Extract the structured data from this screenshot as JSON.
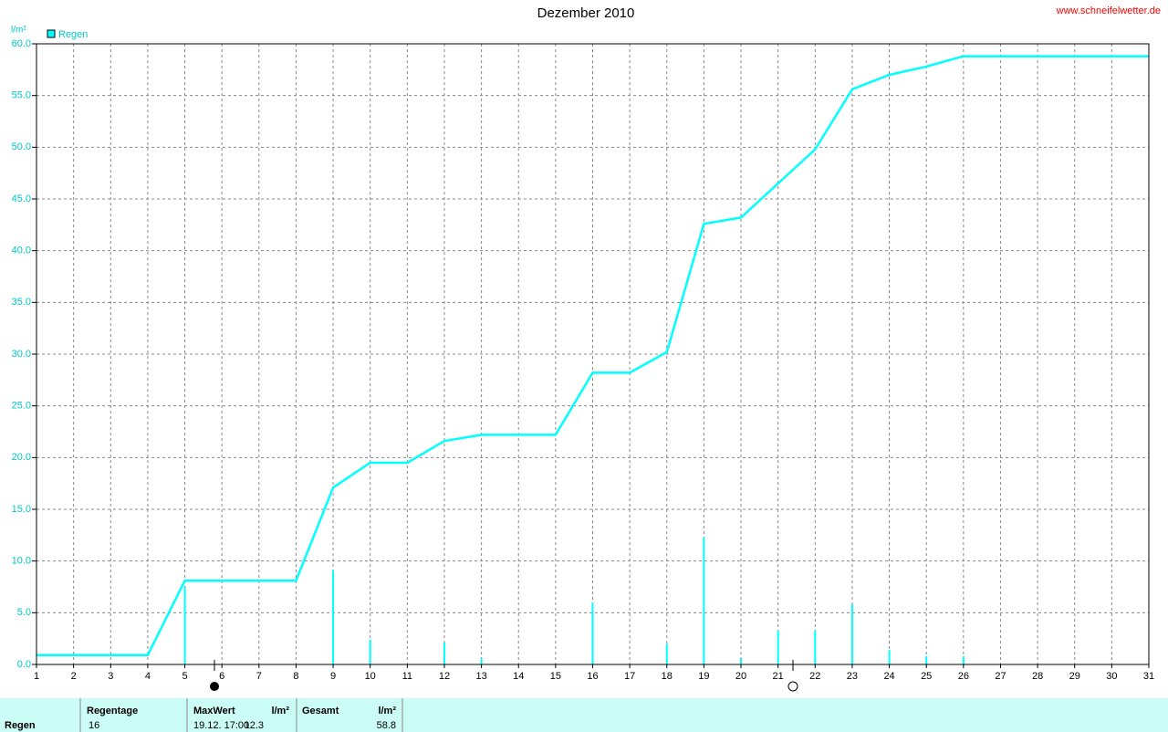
{
  "chart_data": {
    "type": "line",
    "title": "Dezember 2010",
    "source": "www.schneifelwetter.de",
    "y_label": "l/m²",
    "legend": "top-left",
    "grid": true,
    "xlim": [
      1,
      31
    ],
    "xticks": [
      1,
      2,
      3,
      4,
      5,
      6,
      7,
      8,
      9,
      10,
      11,
      12,
      13,
      14,
      15,
      16,
      17,
      18,
      19,
      20,
      21,
      22,
      23,
      24,
      25,
      26,
      27,
      28,
      29,
      30,
      31
    ],
    "ylim": [
      0,
      60
    ],
    "yticks": [
      {
        "value": 0,
        "label": "0.0"
      },
      {
        "value": 5,
        "label": "5.0"
      },
      {
        "value": 10,
        "label": "10.0"
      },
      {
        "value": 15,
        "label": "15.0"
      },
      {
        "value": 20,
        "label": "20.0"
      },
      {
        "value": 25,
        "label": "25.0"
      },
      {
        "value": 30,
        "label": "30.0"
      },
      {
        "value": 35,
        "label": "35.0"
      },
      {
        "value": 40,
        "label": "40.0"
      },
      {
        "value": 45,
        "label": "45.0"
      },
      {
        "value": 50,
        "label": "50.0"
      },
      {
        "value": 55,
        "label": "55.0"
      },
      {
        "value": 60,
        "label": "60.0"
      }
    ],
    "series": [
      {
        "name": "Regen",
        "color": "#00ffff",
        "x": [
          1,
          4,
          5,
          8,
          9,
          10,
          11,
          12,
          13,
          15,
          16,
          17,
          18,
          19,
          20,
          21,
          22,
          23,
          24,
          25,
          26,
          31
        ],
        "values": [
          0.9,
          0.9,
          8.1,
          8.1,
          17.1,
          19.5,
          19.5,
          21.6,
          22.2,
          22.2,
          28.2,
          28.2,
          30.2,
          42.6,
          43.2,
          46.5,
          49.8,
          55.6,
          57.0,
          57.8,
          58.8,
          58.8
        ]
      }
    ],
    "daily": {
      "color": "#00ffff",
      "x": [
        5,
        9,
        10,
        12,
        13,
        16,
        18,
        19,
        20,
        21,
        22,
        23,
        24,
        25,
        26
      ],
      "values": [
        7.5,
        9.1,
        2.4,
        2.1,
        0.6,
        6.0,
        2.0,
        12.3,
        0.6,
        3.3,
        3.3,
        5.8,
        1.4,
        0.8,
        0.8
      ]
    }
  },
  "table": {
    "headers": [
      "Regentage",
      "MaxWert",
      "l/m²",
      "Gesamt",
      "l/m²"
    ],
    "rows": [
      [
        "Regen",
        "16",
        "19.12.  17:00",
        "12.3",
        "58.8"
      ]
    ]
  }
}
